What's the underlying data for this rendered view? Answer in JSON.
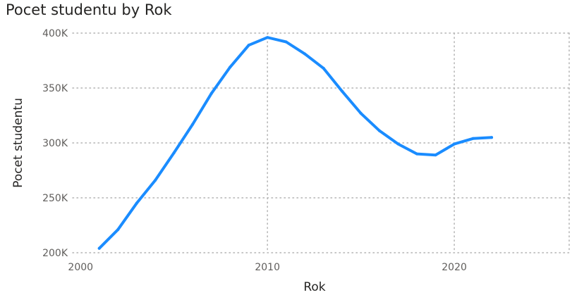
{
  "chart_data": {
    "type": "line",
    "title": "Pocet studentu by Rok",
    "xlabel": "Rok",
    "ylabel": "Pocet studentu",
    "xlim": [
      1999.5,
      2026.3
    ],
    "ylim": [
      200000,
      400000
    ],
    "x_ticks": [
      2000,
      2010,
      2020
    ],
    "y_ticks": [
      200000,
      250000,
      300000,
      350000,
      400000
    ],
    "y_tick_labels": [
      "200K",
      "250K",
      "300K",
      "350K",
      "400K"
    ],
    "grid": true,
    "line_color": "#1a8cff",
    "series": [
      {
        "x": [
          2001,
          2002,
          2003,
          2004,
          2005,
          2006,
          2007,
          2008,
          2009,
          2010,
          2011,
          2012,
          2013,
          2014,
          2015,
          2016,
          2017,
          2018,
          2019,
          2020,
          2021,
          2022
        ],
        "values": [
          204000,
          221000,
          245000,
          266000,
          291000,
          317000,
          345000,
          369000,
          389000,
          396000,
          392000,
          381000,
          368000,
          347000,
          327000,
          311000,
          299000,
          290000,
          289000,
          299000,
          304000,
          305000
        ]
      }
    ]
  }
}
